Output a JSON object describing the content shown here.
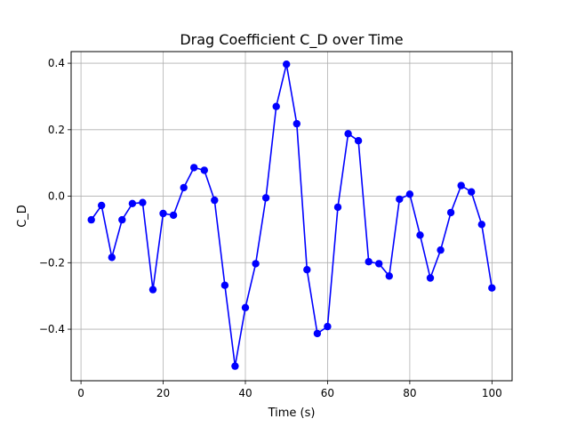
{
  "chart_data": {
    "type": "line",
    "title": "Drag Coefficient C_D over Time",
    "xlabel": "Time (s)",
    "ylabel": "C_D",
    "xlim": [
      -2.4,
      104.9
    ],
    "ylim": [
      -0.555,
      0.435
    ],
    "xticks": [
      0,
      20,
      40,
      60,
      80,
      100
    ],
    "yticks": [
      -0.4,
      -0.2,
      0.0,
      0.2,
      0.4
    ],
    "xtick_labels": [
      "0",
      "20",
      "40",
      "60",
      "80",
      "100"
    ],
    "ytick_labels": [
      "−0.4",
      "−0.2",
      "0.0",
      "0.2",
      "0.4"
    ],
    "grid": true,
    "series": [
      {
        "color": "#0000ff",
        "marker": "circle",
        "x": [
          2.5,
          5.0,
          7.5,
          10.0,
          12.5,
          15.0,
          17.5,
          20.0,
          22.5,
          25.0,
          27.5,
          30.0,
          32.5,
          35.0,
          37.5,
          40.0,
          42.5,
          45.0,
          47.5,
          50.0,
          52.5,
          55.0,
          57.5,
          60.0,
          62.5,
          65.0,
          67.5,
          70.0,
          72.5,
          75.0,
          77.5,
          80.0,
          82.5,
          85.0,
          87.5,
          90.0,
          92.5,
          95.0,
          97.5,
          100.0
        ],
        "y": [
          -0.071,
          -0.028,
          -0.184,
          -0.071,
          -0.022,
          -0.019,
          -0.281,
          -0.052,
          -0.057,
          0.026,
          0.086,
          0.078,
          -0.012,
          -0.268,
          -0.511,
          -0.335,
          -0.203,
          -0.005,
          0.27,
          0.397,
          0.218,
          -0.221,
          -0.413,
          -0.392,
          -0.033,
          0.188,
          0.167,
          -0.197,
          -0.203,
          -0.24,
          -0.009,
          0.006,
          -0.117,
          -0.246,
          -0.162,
          -0.049,
          0.032,
          0.013,
          -0.085,
          -0.276
        ]
      }
    ]
  }
}
